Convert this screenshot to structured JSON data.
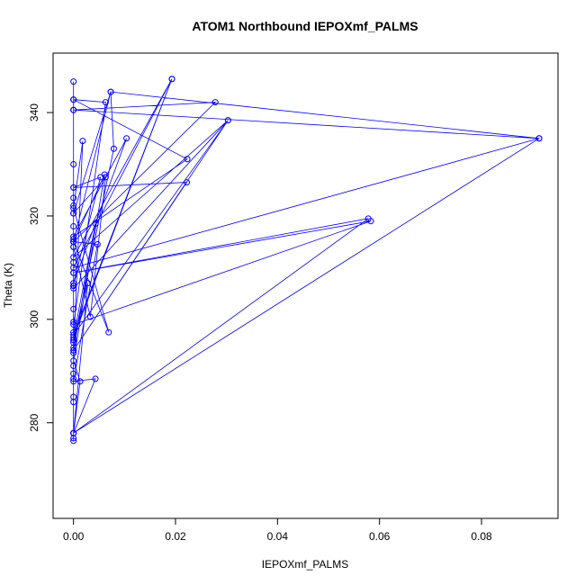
{
  "chart_data": {
    "type": "line",
    "title": "ATOM1 Northbound IEPOXmf_PALMS",
    "xlabel": "IEPOXmf_PALMS",
    "ylabel": "Theta (K)",
    "xlim": [
      -0.004,
      0.095
    ],
    "ylim": [
      261.5,
      351.5
    ],
    "xticks": [
      0.0,
      0.02,
      0.04,
      0.06,
      0.08
    ],
    "xtick_labels": [
      "0.00",
      "0.02",
      "0.04",
      "0.06",
      "0.08"
    ],
    "yticks": [
      280,
      300,
      320,
      340
    ],
    "ytick_labels": [
      "280",
      "300",
      "320",
      "340"
    ],
    "grid": false,
    "color": "#0000ff",
    "series": [
      {
        "points": [
          [
            0.0,
            276.5
          ],
          [
            0.0,
            277.0
          ],
          [
            0.0,
            278.0
          ],
          [
            0.0,
            284.0
          ],
          [
            0.0,
            288.5
          ],
          [
            0.0,
            289.5
          ],
          [
            0.0,
            291.0
          ],
          [
            0.0,
            293.5
          ],
          [
            0.0,
            294.5
          ],
          [
            0.0,
            296.0
          ],
          [
            0.0,
            297.5
          ],
          [
            0.0,
            299.5
          ],
          [
            0.0,
            302.0
          ],
          [
            0.0,
            306.5
          ],
          [
            0.0,
            309.0
          ],
          [
            0.0,
            311.0
          ],
          [
            0.0,
            314.0
          ],
          [
            0.0,
            315.5
          ],
          [
            0.0,
            318.0
          ],
          [
            0.0,
            320.5
          ],
          [
            0.0,
            322.0
          ],
          [
            0.0,
            323.5
          ],
          [
            0.0,
            325.5
          ],
          [
            0.0,
            340.5
          ],
          [
            0.0,
            342.5
          ],
          [
            0.0,
            346.0
          ],
          [
            0.0,
            342.5
          ],
          [
            0.0,
            340.5
          ],
          [
            0.0,
            330.0
          ],
          [
            0.0,
            315.0
          ],
          [
            0.0,
            306.5
          ],
          [
            0.0,
            296.0
          ],
          [
            0.0,
            285.0
          ],
          [
            0.0,
            278.0
          ],
          [
            0.0913,
            335.0
          ],
          [
            0.0,
            340.5
          ],
          [
            0.0278,
            342.0
          ],
          [
            0.0,
            315.0
          ],
          [
            0.0073,
            344.0
          ],
          [
            0.0913,
            335.0
          ],
          [
            0.0,
            310.0
          ],
          [
            0.0193,
            346.5
          ],
          [
            0.0,
            297.0
          ],
          [
            0.0303,
            338.5
          ],
          [
            0.0,
            294.0
          ],
          [
            0.0222,
            326.5
          ],
          [
            0.0,
            325.5
          ],
          [
            0.0053,
            327.5
          ],
          [
            0.0,
            307.0
          ],
          [
            0.0104,
            335.0
          ],
          [
            0.0,
            316.0
          ],
          [
            0.0223,
            331.0
          ],
          [
            0.0,
            342.5
          ],
          [
            0.0063,
            342.0
          ],
          [
            0.0,
            299.0
          ],
          [
            0.0583,
            319.0
          ],
          [
            0.0,
            309.0
          ],
          [
            0.0578,
            319.5
          ],
          [
            0.0,
            278.0
          ],
          [
            0.0028,
            307.0
          ],
          [
            0.0,
            295.5
          ],
          [
            0.0079,
            333.0
          ],
          [
            0.0073,
            344.0
          ],
          [
            0.0,
            320.5
          ],
          [
            0.0063,
            327.5
          ],
          [
            0.0033,
            300.5
          ],
          [
            0.0,
            314.0
          ],
          [
            0.0,
            306.0
          ],
          [
            0.0303,
            338.5
          ],
          [
            0.0,
            312.0
          ],
          [
            0.0193,
            346.5
          ],
          [
            0.0,
            296.5
          ],
          [
            0.0043,
            318.5
          ],
          [
            0.0,
            294.0
          ],
          [
            0.0018,
            334.5
          ],
          [
            0.0,
            321.5
          ],
          [
            0.0069,
            297.5
          ],
          [
            0.0,
            315.0
          ],
          [
            0.0047,
            314.5
          ],
          [
            0.0,
            288.0
          ],
          [
            0.0043,
            288.5
          ],
          [
            0.0,
            278.0
          ],
          [
            0.0013,
            288.0
          ],
          [
            0.0,
            292.0
          ],
          [
            0.0061,
            328.0
          ],
          [
            0.0,
            315.0
          ],
          [
            0.0,
            306.5
          ]
        ]
      }
    ]
  }
}
